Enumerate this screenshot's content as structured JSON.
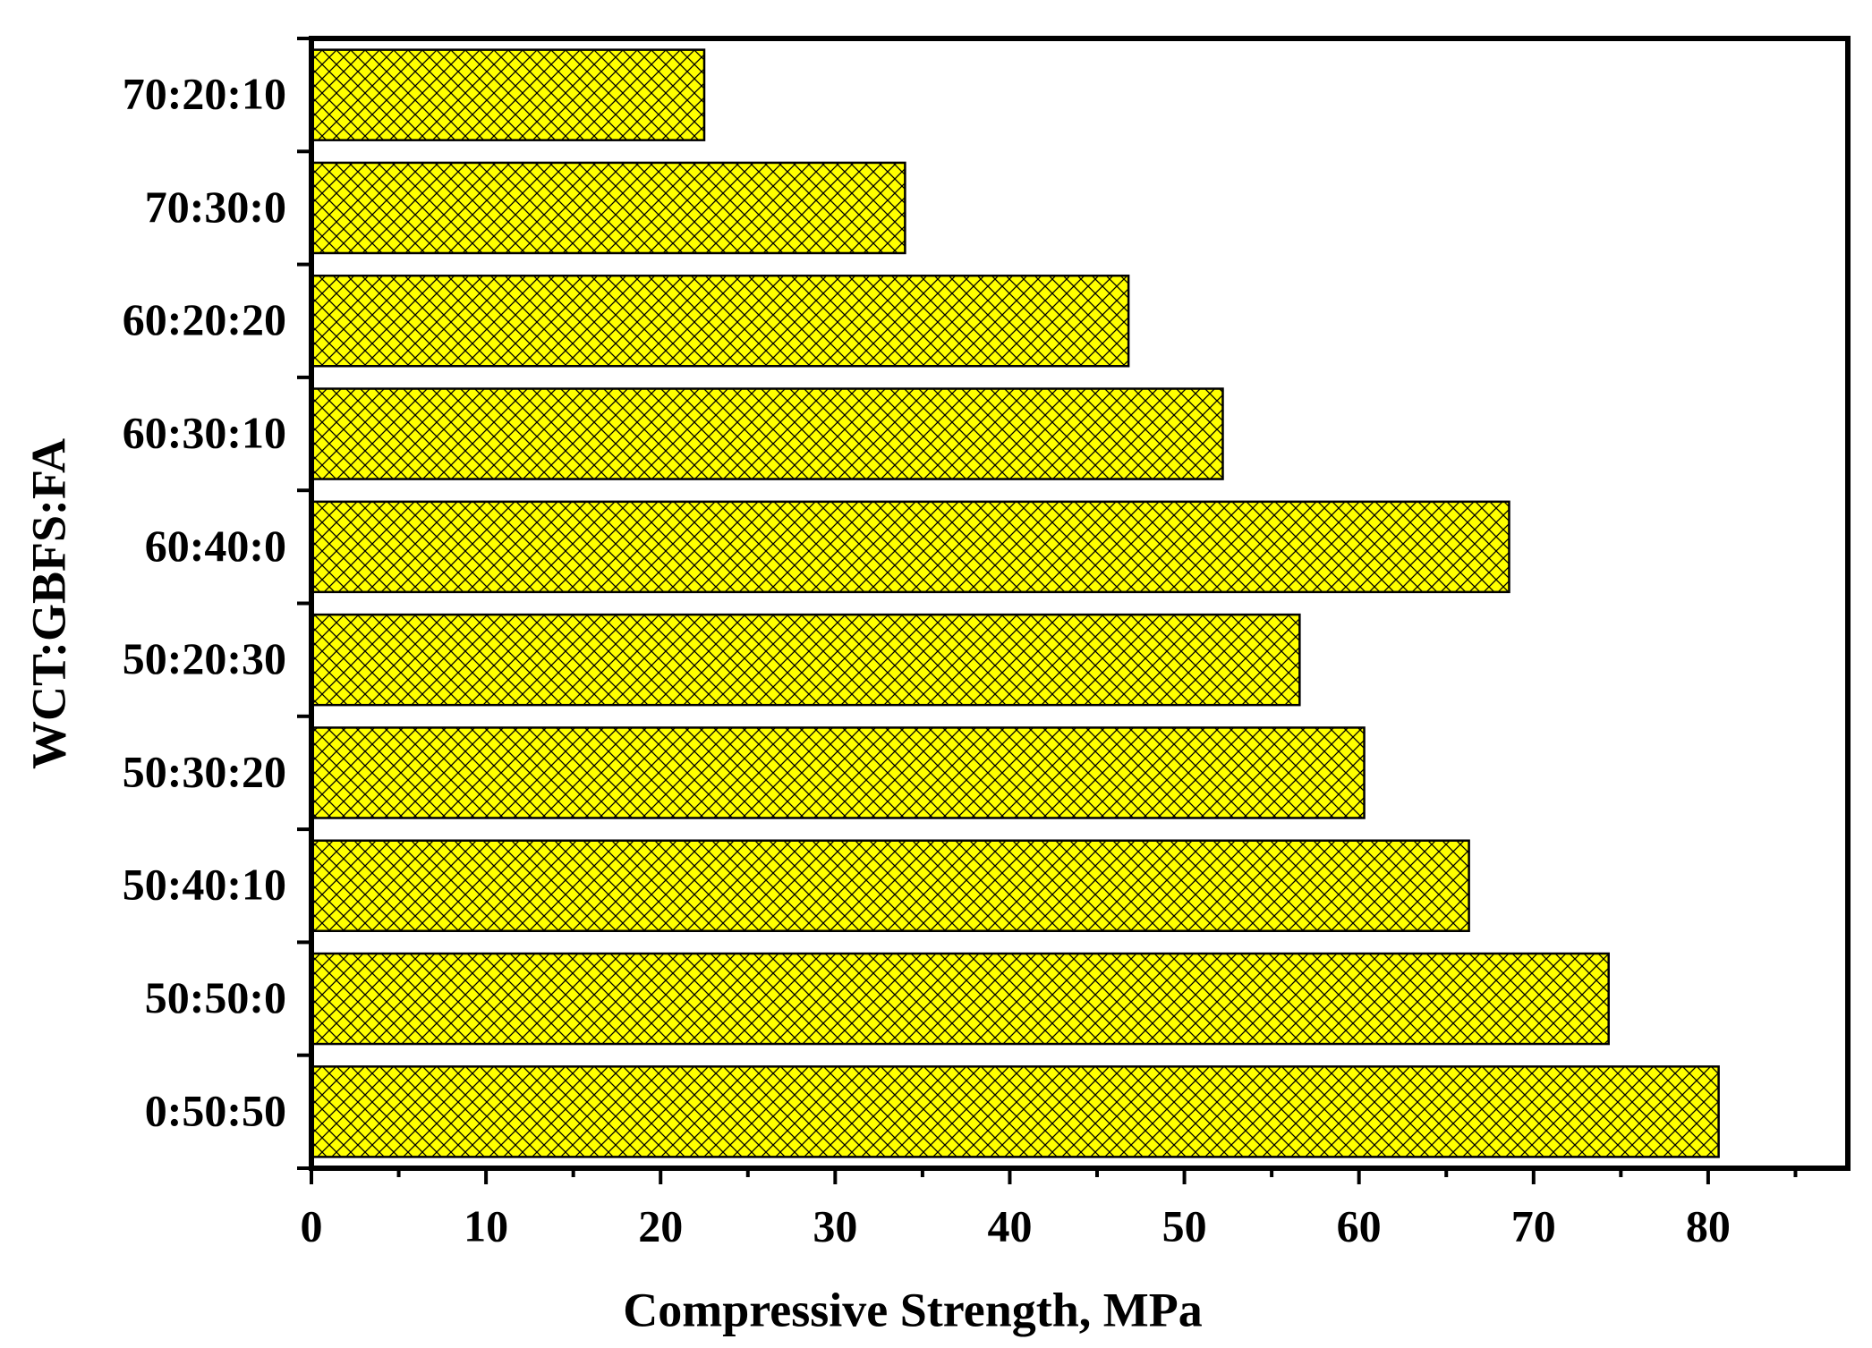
{
  "chart_data": {
    "type": "barh",
    "xlabel": "Compressive Strength, MPa",
    "ylabel": "WCT:GBFS:FA",
    "categories": [
      "0:50:50",
      "50:50:0",
      "50:40:10",
      "50:30:20",
      "50:20:30",
      "60:40:0",
      "60:30:10",
      "60:20:20",
      "70:30:0",
      "70:20:10"
    ],
    "values": [
      80.6,
      74.3,
      66.3,
      60.3,
      56.6,
      68.6,
      52.2,
      46.8,
      34.0,
      22.5
    ],
    "color": "#ffff00",
    "hatch": "crosshatch",
    "xlim": [
      0,
      88
    ],
    "xticks": [
      0,
      10,
      20,
      30,
      40,
      50,
      60,
      70,
      80
    ],
    "xminorticks": [
      5,
      15,
      25,
      35,
      45,
      55,
      65,
      75,
      85
    ]
  }
}
